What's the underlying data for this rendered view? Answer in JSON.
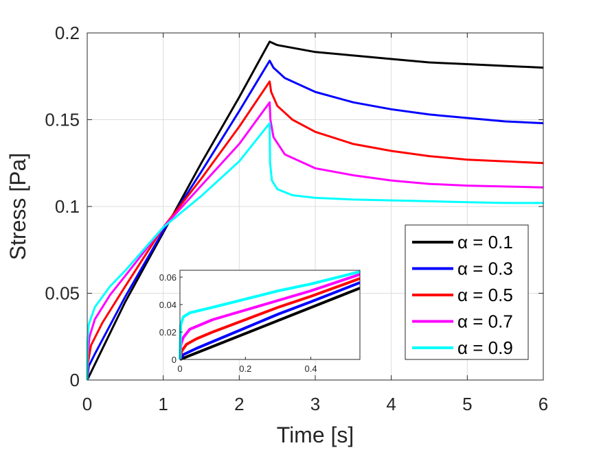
{
  "chart_data": {
    "type": "line",
    "title": "",
    "xlabel": "Time [s]",
    "ylabel": "Stress [Pa]",
    "xlim": [
      0,
      6
    ],
    "ylim": [
      0,
      0.2
    ],
    "xticks": [
      0,
      1,
      2,
      3,
      4,
      5,
      6
    ],
    "yticks": [
      0,
      0.05,
      0.1,
      0.15,
      0.2
    ],
    "xtick_labels": [
      "0",
      "1",
      "2",
      "3",
      "4",
      "5",
      "6"
    ],
    "ytick_labels": [
      "0",
      "0.05",
      "0.1",
      "0.15",
      "0.2"
    ],
    "grid": true,
    "legend_position": "bottom-right",
    "series": [
      {
        "name": "α = 0.1",
        "color": "#000000",
        "x": [
          0,
          0.5,
          1.0,
          1.5,
          2.0,
          2.4,
          2.5,
          3.0,
          3.5,
          4.0,
          4.5,
          5.0,
          5.5,
          6.0
        ],
        "y": [
          0,
          0.045,
          0.085,
          0.125,
          0.163,
          0.195,
          0.193,
          0.189,
          0.187,
          0.185,
          0.183,
          0.182,
          0.181,
          0.18
        ]
      },
      {
        "name": "α = 0.3",
        "color": "#0000ff",
        "x": [
          0,
          0.02,
          0.1,
          0.5,
          1.0,
          1.5,
          2.0,
          2.4,
          2.45,
          2.6,
          3.0,
          3.5,
          4.0,
          4.5,
          5.0,
          5.5,
          6.0
        ],
        "y": [
          0,
          0.008,
          0.015,
          0.048,
          0.086,
          0.12,
          0.155,
          0.184,
          0.18,
          0.174,
          0.166,
          0.16,
          0.156,
          0.153,
          0.151,
          0.149,
          0.148
        ]
      },
      {
        "name": "α = 0.5",
        "color": "#ff0000",
        "x": [
          0,
          0.01,
          0.05,
          0.2,
          0.5,
          1.0,
          1.5,
          2.0,
          2.4,
          2.42,
          2.5,
          2.7,
          3.0,
          3.5,
          4.0,
          4.5,
          5.0,
          5.5,
          6.0
        ],
        "y": [
          0,
          0.01,
          0.02,
          0.033,
          0.054,
          0.088,
          0.116,
          0.146,
          0.172,
          0.166,
          0.158,
          0.15,
          0.143,
          0.136,
          0.132,
          0.129,
          0.127,
          0.126,
          0.125
        ]
      },
      {
        "name": "α = 0.7",
        "color": "#ff00ff",
        "x": [
          0,
          0.005,
          0.03,
          0.1,
          0.3,
          0.5,
          1.0,
          1.5,
          2.0,
          2.4,
          2.41,
          2.45,
          2.6,
          3.0,
          3.5,
          4.0,
          4.5,
          5.0,
          5.5,
          6.0
        ],
        "y": [
          0,
          0.014,
          0.025,
          0.035,
          0.049,
          0.06,
          0.088,
          0.112,
          0.136,
          0.16,
          0.15,
          0.14,
          0.13,
          0.122,
          0.118,
          0.115,
          0.113,
          0.112,
          0.1115,
          0.111
        ]
      },
      {
        "name": "α = 0.9",
        "color": "#00ffff",
        "x": [
          0,
          0.003,
          0.02,
          0.1,
          0.3,
          0.5,
          1.0,
          1.5,
          2.0,
          2.4,
          2.405,
          2.43,
          2.5,
          2.7,
          3.0,
          3.5,
          4.0,
          4.5,
          5.0,
          5.5,
          6.0
        ],
        "y": [
          0,
          0.022,
          0.032,
          0.042,
          0.054,
          0.063,
          0.088,
          0.106,
          0.126,
          0.148,
          0.125,
          0.115,
          0.11,
          0.1065,
          0.105,
          0.104,
          0.1035,
          0.103,
          0.1025,
          0.102,
          0.102
        ]
      }
    ],
    "inset": {
      "xlim": [
        0,
        0.55
      ],
      "ylim": [
        0,
        0.065
      ],
      "xticks": [
        0,
        0.2,
        0.4
      ],
      "yticks": [
        0,
        0.02,
        0.04,
        0.06
      ],
      "xtick_labels": [
        "0",
        "0.2",
        "0.4"
      ],
      "ytick_labels": [
        "0",
        "0.02",
        "0.04",
        "0.06"
      ],
      "grid": false,
      "series": [
        {
          "name": "α = 0.1",
          "color": "#000000",
          "x": [
            0,
            0.55
          ],
          "y": [
            0,
            0.052
          ]
        },
        {
          "name": "α = 0.3",
          "color": "#0000ff",
          "x": [
            0,
            0.01,
            0.05,
            0.1,
            0.2,
            0.3,
            0.4,
            0.55
          ],
          "y": [
            0,
            0.0035,
            0.008,
            0.013,
            0.023,
            0.033,
            0.042,
            0.056
          ]
        },
        {
          "name": "α = 0.5",
          "color": "#ff0000",
          "x": [
            0,
            0.005,
            0.02,
            0.05,
            0.1,
            0.2,
            0.3,
            0.4,
            0.55
          ],
          "y": [
            0,
            0.006,
            0.011,
            0.015,
            0.02,
            0.029,
            0.038,
            0.046,
            0.059
          ]
        },
        {
          "name": "α = 0.7",
          "color": "#ff00ff",
          "x": [
            0,
            0.003,
            0.01,
            0.03,
            0.1,
            0.2,
            0.3,
            0.4,
            0.55
          ],
          "y": [
            0,
            0.011,
            0.016,
            0.022,
            0.029,
            0.036,
            0.043,
            0.05,
            0.062
          ]
        },
        {
          "name": "α = 0.9",
          "color": "#00ffff",
          "x": [
            0,
            0.002,
            0.01,
            0.03,
            0.1,
            0.2,
            0.3,
            0.4,
            0.55
          ],
          "y": [
            0,
            0.025,
            0.031,
            0.034,
            0.038,
            0.044,
            0.05,
            0.055,
            0.064
          ]
        }
      ]
    }
  }
}
